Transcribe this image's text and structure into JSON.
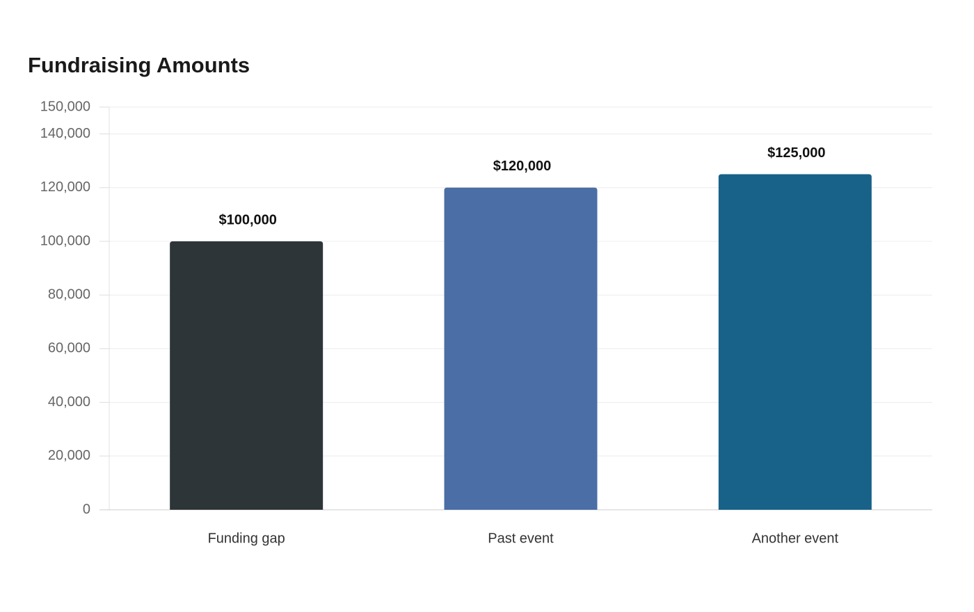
{
  "chart_data": {
    "type": "bar",
    "title": "Fundraising Amounts",
    "categories": [
      "Funding gap",
      "Past event",
      "Another event"
    ],
    "values": [
      100000,
      120000,
      125000
    ],
    "value_labels": [
      "$100,000",
      "$120,000",
      "$125,000"
    ],
    "colors": [
      "#2e3538",
      "#4a6ea5",
      "#186189"
    ],
    "ylim": [
      0,
      150000
    ],
    "yticks": [
      0,
      {
        "value": 20000,
        "label": "20,000"
      },
      {
        "value": 40000,
        "label": "40,000"
      },
      {
        "value": 60000,
        "label": "60,000"
      },
      {
        "value": 80000,
        "label": "80,000"
      },
      {
        "value": 100000,
        "label": "100,000"
      },
      {
        "value": 120000,
        "label": "120,000"
      },
      {
        "value": 140000,
        "label": "140,000"
      },
      {
        "value": 150000,
        "label": "150,000"
      }
    ],
    "grid": true
  }
}
